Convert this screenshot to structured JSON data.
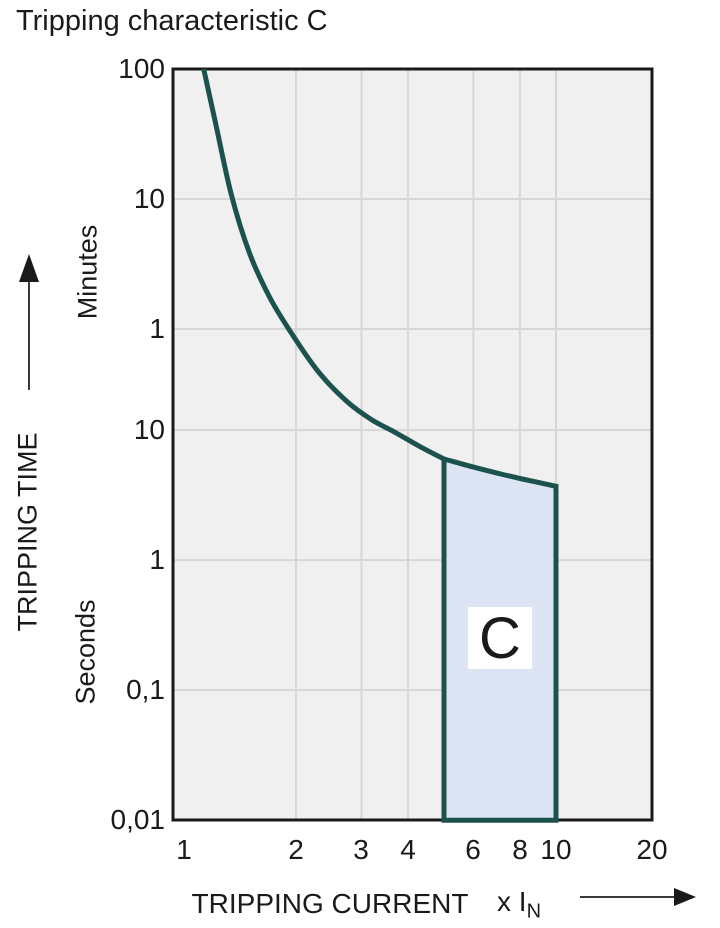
{
  "title": "Tripping characteristic C",
  "region_label": "C",
  "y_axis": {
    "title": "TRIPPING TIME",
    "unit_top": "Minutes",
    "unit_bottom": "Seconds",
    "ticks": [
      {
        "label": "100",
        "seconds": 6000
      },
      {
        "label": "10",
        "seconds": 600
      },
      {
        "label": "1",
        "seconds": 60
      },
      {
        "label": "10",
        "seconds": 10
      },
      {
        "label": "1",
        "seconds": 1
      },
      {
        "label": "0,1",
        "seconds": 0.1
      },
      {
        "label": "0,01",
        "seconds": 0.01
      }
    ]
  },
  "x_axis": {
    "title": "TRIPPING CURRENT",
    "unit": "x I",
    "unit_sub": "N",
    "ticks": [
      {
        "label": "1",
        "value": 1
      },
      {
        "label": "2",
        "value": 2
      },
      {
        "label": "3",
        "value": 3
      },
      {
        "label": "4",
        "value": 4
      },
      {
        "label": "6",
        "value": 6
      },
      {
        "label": "8",
        "value": 8
      },
      {
        "label": "10",
        "value": 10
      },
      {
        "label": "20",
        "value": 20
      }
    ]
  },
  "colors": {
    "curve": "#1c524e",
    "band_fill": "#dde4f3",
    "plot_bg": "#f0f0f0",
    "grid": "#d7d7da",
    "border": "#1a1a1a",
    "text": "#1a1a1a"
  },
  "chart_data": {
    "type": "line",
    "title": "Tripping characteristic C",
    "x_axis": {
      "label": "TRIPPING CURRENT",
      "unit": "x IN",
      "scale": "log",
      "range": [
        1,
        20
      ],
      "tick_values": [
        1,
        2,
        3,
        4,
        6,
        8,
        10,
        20
      ],
      "gridline_values": [
        2,
        3,
        4,
        6,
        8,
        10
      ]
    },
    "y_axis": {
      "label": "TRIPPING TIME",
      "scale": "log",
      "units": [
        "Minutes",
        "Seconds"
      ],
      "range_seconds": [
        0.01,
        6000
      ],
      "tick_seconds": [
        6000,
        600,
        60,
        10,
        1,
        0.1,
        0.01
      ],
      "gridline_seconds": [
        600,
        60,
        10,
        1,
        0.1
      ]
    },
    "series": [
      {
        "name": "thermal_trip_curve",
        "points_x_in_y_seconds": [
          [
            1.13,
            6000
          ],
          [
            1.22,
            2200
          ],
          [
            1.34,
            650
          ],
          [
            1.5,
            230
          ],
          [
            1.7,
            105
          ],
          [
            1.95,
            55
          ],
          [
            2.3,
            28
          ],
          [
            2.75,
            16.5
          ],
          [
            3.2,
            12
          ],
          [
            3.65,
            9.8
          ],
          [
            4.3,
            7.5
          ],
          [
            5,
            6
          ]
        ]
      },
      {
        "name": "magnetic_band_top",
        "points_x_in_y_seconds": [
          [
            5,
            6
          ],
          [
            6,
            5.2
          ],
          [
            7,
            4.65
          ],
          [
            8,
            4.25
          ],
          [
            9,
            3.95
          ],
          [
            10,
            3.7
          ]
        ]
      }
    ],
    "shaded_band": {
      "label": "C",
      "x_from": 5,
      "x_to": 10,
      "y_bottom_seconds": 0.01
    },
    "legend": "none",
    "grid": "on"
  }
}
